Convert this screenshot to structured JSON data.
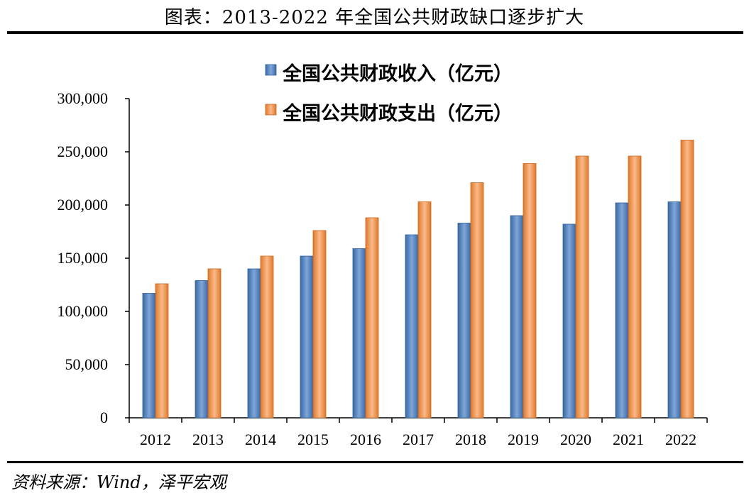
{
  "title": "图表：2013-2022 年全国公共财政缺口逐步扩大",
  "source": "资料来源：Wind，泽平宏观",
  "colors": {
    "revenue": "#4f81bd",
    "expenditure": "#f79646"
  },
  "chart_data": {
    "type": "bar",
    "categories": [
      "2012",
      "2013",
      "2014",
      "2015",
      "2016",
      "2017",
      "2018",
      "2019",
      "2020",
      "2021",
      "2022"
    ],
    "series": [
      {
        "name": "全国公共财政收入（亿元）",
        "values": [
          117000,
          129000,
          140000,
          152000,
          159000,
          172000,
          183000,
          190000,
          182000,
          202000,
          203000
        ]
      },
      {
        "name": "全国公共财政支出（亿元）",
        "values": [
          126000,
          140000,
          152000,
          176000,
          188000,
          203000,
          221000,
          239000,
          246000,
          246000,
          261000
        ]
      }
    ],
    "yticks": [
      "0",
      "50,000",
      "100,000",
      "150,000",
      "200,000",
      "250,000",
      "300,000"
    ],
    "ylim": [
      0,
      300000
    ],
    "grid": false,
    "legend_position": "top"
  }
}
